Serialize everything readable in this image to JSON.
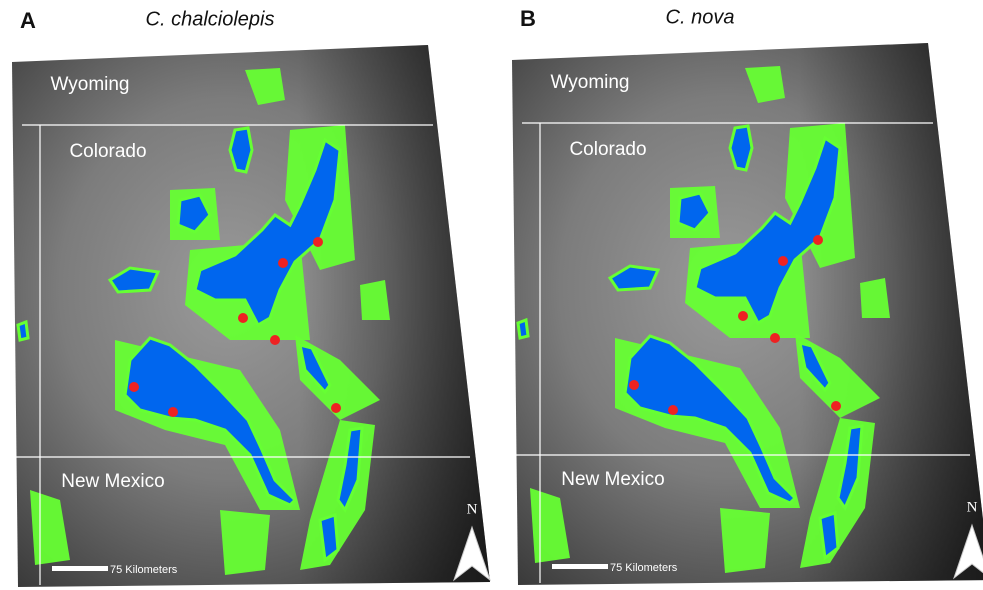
{
  "panels": [
    {
      "letter": "A",
      "title": "C. chalciolepis",
      "states": [
        "Wyoming",
        "Colorado",
        "New Mexico"
      ],
      "scale_label": "75 Kilometers",
      "north": "N"
    },
    {
      "letter": "B",
      "title": "C. nova",
      "states": [
        "Wyoming",
        "Colorado",
        "New Mexico"
      ],
      "scale_label": "75 Kilometers",
      "north": "N"
    }
  ]
}
